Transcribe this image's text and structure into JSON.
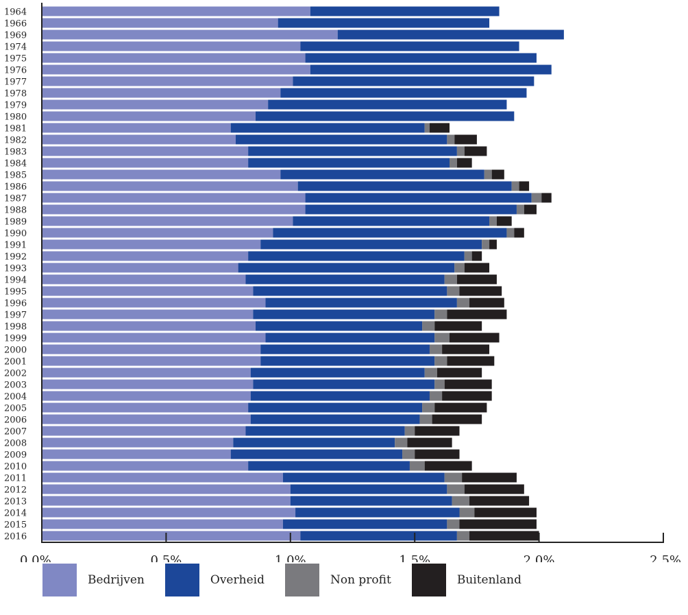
{
  "chart_data": {
    "type": "bar",
    "orientation": "horizontal",
    "stacked": true,
    "categories": [
      "1964",
      "1966",
      "1969",
      "1974",
      "1975",
      "1976",
      "1977",
      "1978",
      "1979",
      "1980",
      "1981",
      "1982",
      "1983",
      "1984",
      "1985",
      "1986",
      "1987",
      "1988",
      "1989",
      "1990",
      "1991",
      "1992",
      "1993",
      "1994",
      "1995",
      "1996",
      "1997",
      "1998",
      "1999",
      "2000",
      "2001",
      "2002",
      "2003",
      "2004",
      "2005",
      "2006",
      "2007",
      "2008",
      "2009",
      "2010",
      "2011",
      "2012",
      "2013",
      "2014",
      "2015",
      "2016"
    ],
    "series": [
      {
        "name": "Bedrijven",
        "color": "#8088c4",
        "values": [
          1.08,
          0.95,
          1.19,
          1.04,
          1.06,
          1.08,
          1.01,
          0.96,
          0.91,
          0.86,
          0.76,
          0.78,
          0.83,
          0.83,
          0.96,
          1.03,
          1.06,
          1.06,
          1.01,
          0.93,
          0.88,
          0.83,
          0.79,
          0.82,
          0.85,
          0.9,
          0.85,
          0.86,
          0.9,
          0.88,
          0.88,
          0.84,
          0.85,
          0.84,
          0.83,
          0.84,
          0.82,
          0.77,
          0.76,
          0.83,
          0.97,
          1.0,
          1.0,
          1.02,
          0.97,
          1.04
        ]
      },
      {
        "name": "Overheid",
        "color": "#1c4799",
        "values": [
          0.76,
          0.85,
          0.91,
          0.88,
          0.93,
          0.97,
          0.97,
          0.99,
          0.96,
          1.04,
          0.78,
          0.85,
          0.84,
          0.81,
          0.82,
          0.86,
          0.91,
          0.85,
          0.79,
          0.94,
          0.89,
          0.87,
          0.87,
          0.8,
          0.78,
          0.77,
          0.73,
          0.67,
          0.68,
          0.68,
          0.7,
          0.7,
          0.73,
          0.72,
          0.7,
          0.68,
          0.64,
          0.65,
          0.69,
          0.65,
          0.65,
          0.63,
          0.65,
          0.66,
          0.66,
          0.63
        ]
      },
      {
        "name": "Non profit",
        "color": "#7a7a7e",
        "values": [
          0,
          0,
          0,
          0,
          0,
          0,
          0,
          0,
          0,
          0,
          0.02,
          0.03,
          0.03,
          0.03,
          0.03,
          0.03,
          0.04,
          0.03,
          0.03,
          0.03,
          0.03,
          0.03,
          0.04,
          0.05,
          0.05,
          0.05,
          0.05,
          0.05,
          0.06,
          0.05,
          0.05,
          0.05,
          0.04,
          0.05,
          0.05,
          0.05,
          0.04,
          0.05,
          0.05,
          0.06,
          0.07,
          0.07,
          0.07,
          0.06,
          0.05,
          0.05
        ]
      },
      {
        "name": "Buitenland",
        "color": "#231f20",
        "values": [
          0,
          0,
          0,
          0,
          0,
          0,
          0,
          0,
          0,
          0,
          0.08,
          0.09,
          0.09,
          0.06,
          0.05,
          0.04,
          0.04,
          0.05,
          0.06,
          0.04,
          0.03,
          0.04,
          0.1,
          0.16,
          0.17,
          0.14,
          0.24,
          0.19,
          0.2,
          0.19,
          0.19,
          0.18,
          0.19,
          0.2,
          0.21,
          0.2,
          0.18,
          0.18,
          0.18,
          0.19,
          0.22,
          0.24,
          0.24,
          0.25,
          0.31,
          0.28
        ]
      }
    ],
    "x_ticks": [
      "0,0%",
      "0,5%",
      "1,0%",
      "1,5%",
      "2,0%",
      "2,5%"
    ],
    "xlim": [
      0,
      2.5
    ],
    "legend_position": "bottom",
    "grid": false
  }
}
